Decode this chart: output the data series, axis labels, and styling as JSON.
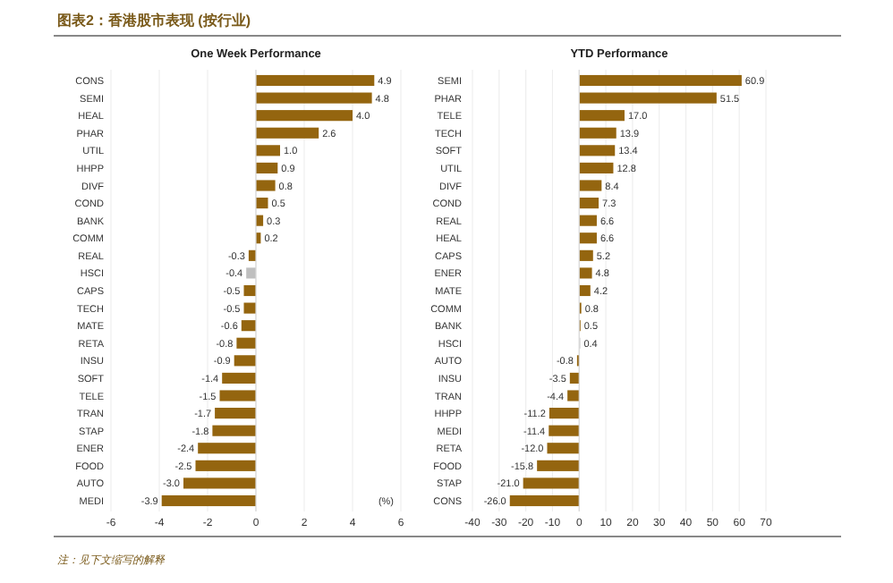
{
  "chart_data": [
    {
      "type": "bar",
      "orientation": "horizontal",
      "title": "One Week Performance",
      "annotations": [
        "图表2：香港股市表现 (按行业)",
        "(%)",
        "注：见下文缩写的解释"
      ],
      "categories": [
        "CONS",
        "SEMI",
        "HEAL",
        "PHAR",
        "UTIL",
        "HHPP",
        "DIVF",
        "COND",
        "BANK",
        "COMM",
        "REAL",
        "HSCI",
        "CAPS",
        "TECH",
        "MATE",
        "RETA",
        "INSU",
        "SOFT",
        "TELE",
        "TRAN",
        "STAP",
        "ENER",
        "FOOD",
        "AUTO",
        "MEDI"
      ],
      "values": [
        4.9,
        4.8,
        4.0,
        2.6,
        1.0,
        0.9,
        0.8,
        0.5,
        0.3,
        0.2,
        -0.3,
        -0.4,
        -0.5,
        -0.5,
        -0.6,
        -0.8,
        -0.9,
        -1.4,
        -1.5,
        -1.7,
        -1.8,
        -2.4,
        -2.5,
        -3.0,
        -3.9
      ],
      "value_labels": [
        "4.9",
        "4.8",
        "4.0",
        "2.6",
        "1.0",
        "0.9",
        "0.8",
        "0.5",
        "0.3",
        "0.2",
        "-0.3",
        "-0.4",
        "-0.5",
        "-0.5",
        "-0.6",
        "-0.8",
        "-0.9",
        "-1.4",
        "-1.5",
        "-1.7",
        "-1.8",
        "-2.4",
        "-2.5",
        "-3.0",
        "-3.9"
      ],
      "colors": [
        "#94650f",
        "#94650f",
        "#94650f",
        "#94650f",
        "#94650f",
        "#94650f",
        "#94650f",
        "#94650f",
        "#94650f",
        "#94650f",
        "#94650f",
        "#bfbfbf",
        "#94650f",
        "#94650f",
        "#94650f",
        "#94650f",
        "#94650f",
        "#94650f",
        "#94650f",
        "#94650f",
        "#94650f",
        "#94650f",
        "#94650f",
        "#94650f",
        "#94650f"
      ],
      "xlim": [
        -6,
        6
      ],
      "xticks": [
        -6,
        -4,
        -2,
        0,
        2,
        4,
        6
      ],
      "grid": "x"
    },
    {
      "type": "bar",
      "orientation": "horizontal",
      "title": "YTD Performance",
      "categories": [
        "SEMI",
        "PHAR",
        "TELE",
        "TECH",
        "SOFT",
        "UTIL",
        "DIVF",
        "COND",
        "REAL",
        "HEAL",
        "CAPS",
        "ENER",
        "MATE",
        "COMM",
        "BANK",
        "HSCI",
        "AUTO",
        "INSU",
        "TRAN",
        "HHPP",
        "MEDI",
        "RETA",
        "FOOD",
        "STAP",
        "CONS"
      ],
      "values": [
        60.9,
        51.5,
        17.0,
        13.9,
        13.4,
        12.8,
        8.4,
        7.3,
        6.6,
        6.6,
        5.2,
        4.8,
        4.2,
        0.8,
        0.5,
        0.4,
        -0.8,
        -3.5,
        -4.4,
        -11.2,
        -11.4,
        -12.0,
        -15.8,
        -21.0,
        -26.0
      ],
      "value_labels": [
        "60.9",
        "51.5",
        "17.0",
        "13.9",
        "13.4",
        "12.8",
        "8.4",
        "7.3",
        "6.6",
        "6.6",
        "5.2",
        "4.8",
        "4.2",
        "0.8",
        "0.5",
        "0.4",
        "-0.8",
        "-3.5",
        "-4.4",
        "-11.2",
        "-11.4",
        "-12.0",
        "-15.8",
        "-21.0",
        "-26.0"
      ],
      "colors": [
        "#94650f",
        "#94650f",
        "#94650f",
        "#94650f",
        "#94650f",
        "#94650f",
        "#94650f",
        "#94650f",
        "#94650f",
        "#94650f",
        "#94650f",
        "#94650f",
        "#94650f",
        "#94650f",
        "#94650f",
        "#bfbfbf",
        "#94650f",
        "#94650f",
        "#94650f",
        "#94650f",
        "#94650f",
        "#94650f",
        "#94650f",
        "#94650f",
        "#94650f"
      ],
      "xlim": [
        -40,
        70
      ],
      "xticks": [
        -40,
        -30,
        -20,
        -10,
        0,
        10,
        20,
        30,
        40,
        50,
        60,
        70
      ],
      "grid": "x"
    }
  ]
}
